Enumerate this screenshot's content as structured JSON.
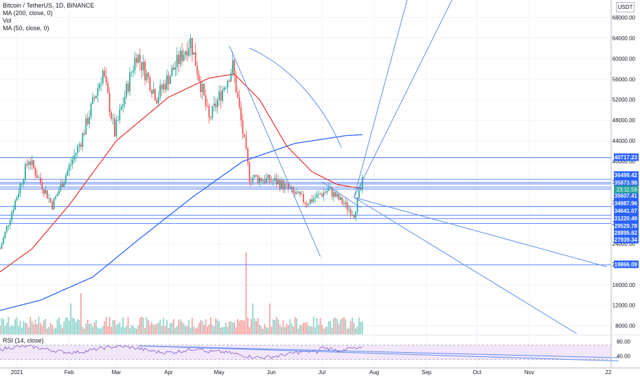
{
  "legend": {
    "symbol": "Bitcoin / TetherUS, 1D, BINANCE",
    "ma200": "MA (200, close, 0)",
    "vol": "Vol",
    "ma50": "MA (50, close, 0)",
    "rsi": "RSI (14, close)"
  },
  "currency": "USDT",
  "colors": {
    "up": "#26a69a",
    "down": "#ef5350",
    "vol_up": "#8fd3cd",
    "vol_down": "#f5a3a1",
    "ma200": "#2962ff",
    "ma50": "#e53935",
    "hline": "#2962ff",
    "trend": "#5b8def",
    "rsi": "#7e57c2",
    "rsi_band": "#f2e6fb",
    "label_bg": "#2962ff"
  },
  "chart_data": {
    "type": "candlestick",
    "x_ticks": [
      "2021",
      "Feb",
      "Mar",
      "Apr",
      "May",
      "Jun",
      "Jul",
      "Aug",
      "Sep",
      "Oct",
      "Nov",
      "22"
    ],
    "y_ticks": [
      "68000.00",
      "64000.00",
      "60000.00",
      "56000.00",
      "52000.00",
      "48000.00",
      "44000.00",
      "40000.00",
      "36000.00",
      "32000.00",
      "28000.00",
      "24000.00",
      "20000.00",
      "16000.00",
      "12000.00",
      "8000.00"
    ],
    "ylim": [
      5000,
      70000
    ],
    "date_range": [
      "2020-12-22",
      "2021-07-25"
    ],
    "price_anchors": [
      [
        "2020-12-22",
        23000
      ],
      [
        "2021-01-08",
        40500
      ],
      [
        "2021-01-22",
        31500
      ],
      [
        "2021-02-08",
        44000
      ],
      [
        "2021-02-21",
        57500
      ],
      [
        "2021-02-28",
        45500
      ],
      [
        "2021-03-13",
        61000
      ],
      [
        "2021-03-25",
        52500
      ],
      [
        "2021-04-14",
        63500
      ],
      [
        "2021-04-25",
        48000
      ],
      [
        "2021-05-09",
        58500
      ],
      [
        "2021-05-19",
        37000
      ],
      [
        "2021-06-05",
        36000
      ],
      [
        "2021-06-22",
        32000
      ],
      [
        "2021-07-05",
        34500
      ],
      [
        "2021-07-20",
        29800
      ],
      [
        "2021-07-25",
        35900
      ]
    ],
    "ma50_anchors": [
      [
        "2020-12-22",
        18500
      ],
      [
        "2021-01-10",
        23000
      ],
      [
        "2021-02-01",
        31500
      ],
      [
        "2021-03-01",
        44000
      ],
      [
        "2021-04-01",
        52500
      ],
      [
        "2021-04-25",
        56200
      ],
      [
        "2021-05-10",
        57000
      ],
      [
        "2021-05-25",
        52000
      ],
      [
        "2021-06-10",
        43000
      ],
      [
        "2021-06-25",
        38000
      ],
      [
        "2021-07-10",
        35500
      ],
      [
        "2021-07-25",
        34700
      ]
    ],
    "ma200_anchors": [
      [
        "2020-12-22",
        11000
      ],
      [
        "2021-01-15",
        13000
      ],
      [
        "2021-02-15",
        17500
      ],
      [
        "2021-03-15",
        25000
      ],
      [
        "2021-04-15",
        33000
      ],
      [
        "2021-05-15",
        40000
      ],
      [
        "2021-06-15",
        43500
      ],
      [
        "2021-07-15",
        45000
      ],
      [
        "2021-07-25",
        45200
      ]
    ],
    "horizontal_levels": [
      {
        "price": 40717.23,
        "label": "40717.23"
      },
      {
        "price": 36499.42,
        "label": "36499.42"
      },
      {
        "price": 35873.98,
        "label": "35873.98"
      },
      {
        "price": 35607.41,
        "label": "35607.41"
      },
      {
        "price": 34987.96,
        "label": "34987.96"
      },
      {
        "price": 34641.07,
        "label": "34641.07"
      },
      {
        "price": 31220.49,
        "label": "31220.49"
      },
      {
        "price": 29529.78,
        "label": "29529.78"
      },
      {
        "price": 28895.62,
        "label": "28895.62"
      },
      {
        "price": 27939.34,
        "label": "27939.34"
      },
      {
        "price": 19866.09,
        "label": "19866.09"
      }
    ],
    "countdown": "23:11:59",
    "trendlines": [
      {
        "from": [
          "2021-05-07",
          62500
        ],
        "to": [
          "2021-06-30",
          21500
        ]
      },
      {
        "from": [
          "2021-07-20",
          33000
        ],
        "to": [
          "2021-08-21",
          72000
        ]
      },
      {
        "from": [
          "2021-07-20",
          33000
        ],
        "to": [
          "2021-09-17",
          72000
        ]
      },
      {
        "from": [
          "2021-07-20",
          33000
        ],
        "to": [
          "2021-11-29",
          6500
        ]
      },
      {
        "from": [
          "2021-07-20",
          33000
        ],
        "to": [
          "2021-12-17",
          19500
        ]
      },
      {
        "from": [
          "2021-07-01",
          36000
        ],
        "to": [
          "2021-07-24",
          31000
        ]
      }
    ],
    "rsi": {
      "ticks": [
        "80.00",
        "40.00"
      ],
      "ylim": [
        20,
        95
      ],
      "band": [
        30,
        70
      ],
      "trendlines": [
        {
          "from": [
            "2021-03-14",
            68
          ],
          "to": [
            "2021-12-24",
            35
          ]
        },
        {
          "from": [
            "2021-03-14",
            68
          ],
          "to": [
            "2021-12-24",
            26
          ]
        }
      ]
    }
  }
}
